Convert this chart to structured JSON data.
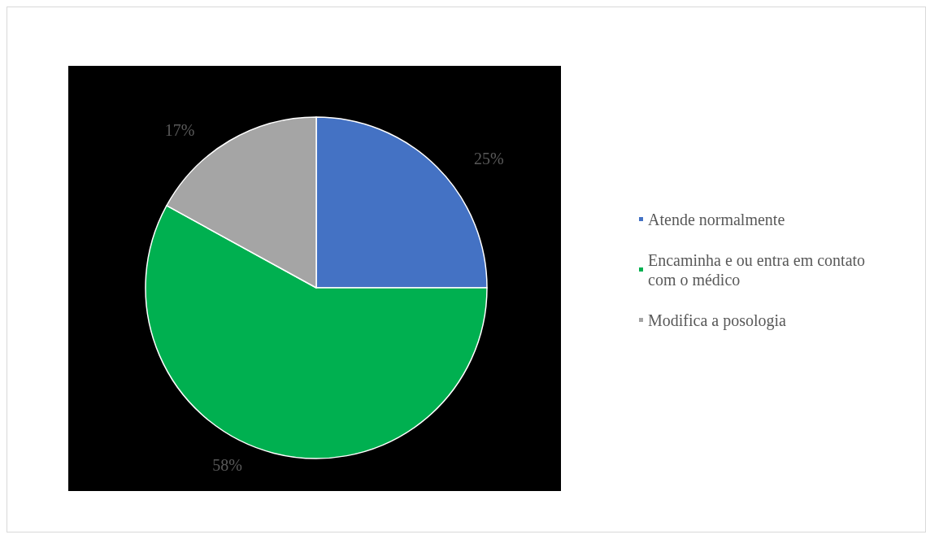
{
  "chart_data": {
    "type": "pie",
    "categories": [
      "Atende normalmente",
      "Encaminha e ou entra em contato com o médico",
      "Modifica a posologia"
    ],
    "values": [
      25,
      58,
      17
    ],
    "colors": [
      "#4472c4",
      "#00b050",
      "#a5a5a5"
    ],
    "legend": "right",
    "value_labels": [
      "25%",
      "58%",
      "17%"
    ]
  }
}
